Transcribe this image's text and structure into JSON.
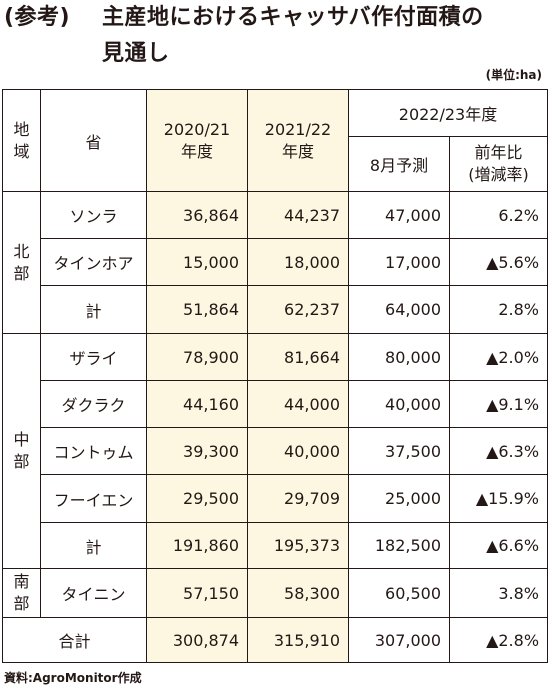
{
  "title": {
    "prefix": "(参考)",
    "line1": "主産地におけるキャッサバ作付面積の",
    "line2": "見通し"
  },
  "unit": "(単位:ha)",
  "headers": {
    "region": "地\n域",
    "province": "省",
    "y2020": "2020/21\n年度",
    "y2021": "2021/22\n年度",
    "y2022": "2022/23年度",
    "forecast": "8月予測",
    "change": "前年比\n(増減率)"
  },
  "regions": [
    {
      "name": "北\n部",
      "rows": [
        {
          "province": "ソンラ",
          "y2020": "36,864",
          "y2021": "44,237",
          "forecast": "47,000",
          "change": "6.2%"
        },
        {
          "province": "タインホア",
          "y2020": "15,000",
          "y2021": "18,000",
          "forecast": "17,000",
          "change": "▲5.6%"
        },
        {
          "province": "計",
          "y2020": "51,864",
          "y2021": "62,237",
          "forecast": "64,000",
          "change": "2.8%"
        }
      ]
    },
    {
      "name": "中\n部",
      "rows": [
        {
          "province": "ザライ",
          "y2020": "78,900",
          "y2021": "81,664",
          "forecast": "80,000",
          "change": "▲2.0%"
        },
        {
          "province": "ダクラク",
          "y2020": "44,160",
          "y2021": "44,000",
          "forecast": "40,000",
          "change": "▲9.1%"
        },
        {
          "province": "コントゥム",
          "y2020": "39,300",
          "y2021": "40,000",
          "forecast": "37,500",
          "change": "▲6.3%"
        },
        {
          "province": "フーイエン",
          "y2020": "29,500",
          "y2021": "29,709",
          "forecast": "25,000",
          "change": "▲15.9%"
        },
        {
          "province": "計",
          "y2020": "191,860",
          "y2021": "195,373",
          "forecast": "182,500",
          "change": "▲6.6%"
        }
      ]
    },
    {
      "name": "南\n部",
      "rows": [
        {
          "province": "タイニン",
          "y2020": "57,150",
          "y2021": "58,300",
          "forecast": "60,500",
          "change": "3.8%"
        }
      ]
    }
  ],
  "total": {
    "label": "合計",
    "y2020": "300,874",
    "y2021": "315,910",
    "forecast": "307,000",
    "change": "▲2.8%"
  },
  "source": "資料:AgroMonitor作成",
  "colors": {
    "text": "#231815",
    "shaded": "#fdf7e2",
    "border": "#231815"
  }
}
